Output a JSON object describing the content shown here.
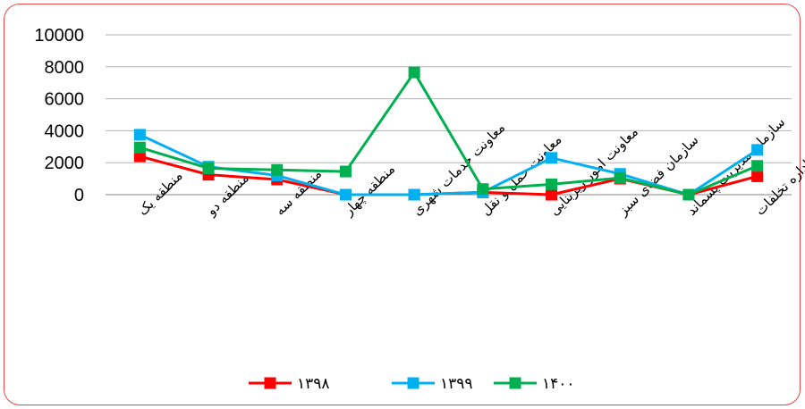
{
  "chart_data": {
    "type": "line",
    "title": "",
    "xlabel": "",
    "ylabel": "",
    "ylim": [
      0,
      10000
    ],
    "yticks": [
      0,
      2000,
      4000,
      6000,
      8000,
      10000
    ],
    "ytick_labels": [
      "0",
      "2000",
      "4000",
      "6000",
      "8000",
      "10000"
    ],
    "grid": true,
    "legend_position": "bottom",
    "categories": [
      "منطقه یک",
      "منطقه دو",
      "منطقه سه",
      "منطقه چهار",
      "معاونت خدمات شهری",
      "معاونت حمل و نقل",
      "معاونت امور زیربنایی",
      "سازمان فضای سبز",
      "سازمان مدیریت پسماند",
      "اداره تخلفات"
    ],
    "series": [
      {
        "name": "۱۳۹۸",
        "color": "#ff0000",
        "values": [
          2400,
          1250,
          950,
          0,
          0,
          150,
          0,
          1000,
          0,
          1150
        ]
      },
      {
        "name": "۱۳۹۹",
        "color": "#00b0f0",
        "values": [
          3750,
          1750,
          1200,
          0,
          0,
          150,
          2300,
          1300,
          0,
          2800
        ]
      },
      {
        "name": "۱۴۰۰",
        "color": "#00b050",
        "values": [
          2950,
          1650,
          1550,
          1450,
          7650,
          350,
          650,
          1050,
          0,
          1800
        ]
      }
    ]
  }
}
